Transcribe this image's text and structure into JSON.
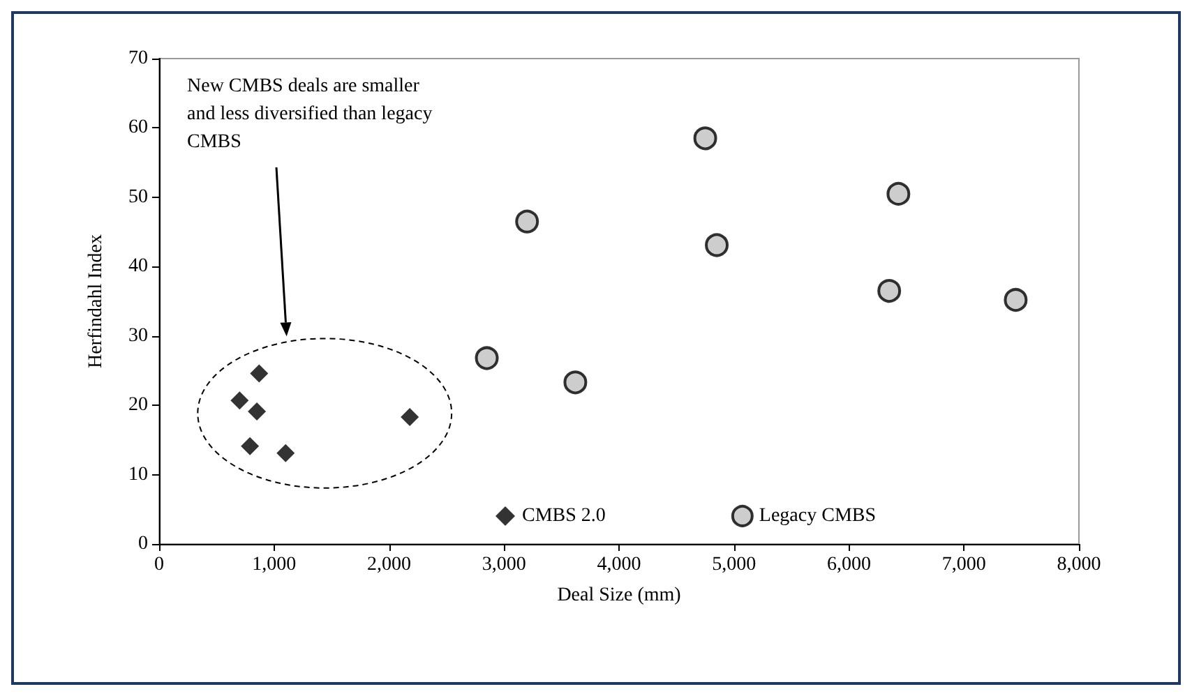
{
  "chart_data": {
    "type": "scatter",
    "xlabel": "Deal Size (mm)",
    "ylabel": "Herfindahl Index",
    "annotations": [
      "New CMBS deals are smaller and less diversified than legacy CMBS"
    ],
    "series": [
      {
        "name": "CMBS 2.0",
        "color": "#000000",
        "marker": "diamond",
        "x": [
          870,
          700,
          850,
          790,
          1100,
          2180
        ],
        "values": [
          24.6,
          20.7,
          19.1,
          14.1,
          13.1,
          18.3
        ]
      },
      {
        "name": "Legacy CMBS",
        "color": "#c0c0c0",
        "marker": "circle",
        "x": [
          2850,
          3200,
          3620,
          4750,
          4850,
          6350,
          6430,
          7450
        ],
        "values": [
          26.8,
          46.5,
          23.3,
          58.5,
          43.1,
          36.5,
          50.5,
          35.2
        ]
      }
    ],
    "xlim": [
      0,
      8000
    ],
    "xticks": [
      0,
      {
        "value": 1000,
        "label": "1,000"
      },
      {
        "value": 2000,
        "label": "2,000"
      },
      {
        "value": 3000,
        "label": "3,000"
      },
      {
        "value": 4000,
        "label": "4,000"
      },
      {
        "value": 5000,
        "label": "5,000"
      },
      {
        "value": 6000,
        "label": "6,000"
      },
      {
        "value": 7000,
        "label": "7,000"
      },
      {
        "value": 8000,
        "label": "8,000"
      }
    ],
    "ylim": [
      0,
      70
    ],
    "yticks": [
      0,
      10,
      20,
      30,
      40,
      50,
      60,
      70
    ],
    "grid": false,
    "legend": "bottom"
  }
}
